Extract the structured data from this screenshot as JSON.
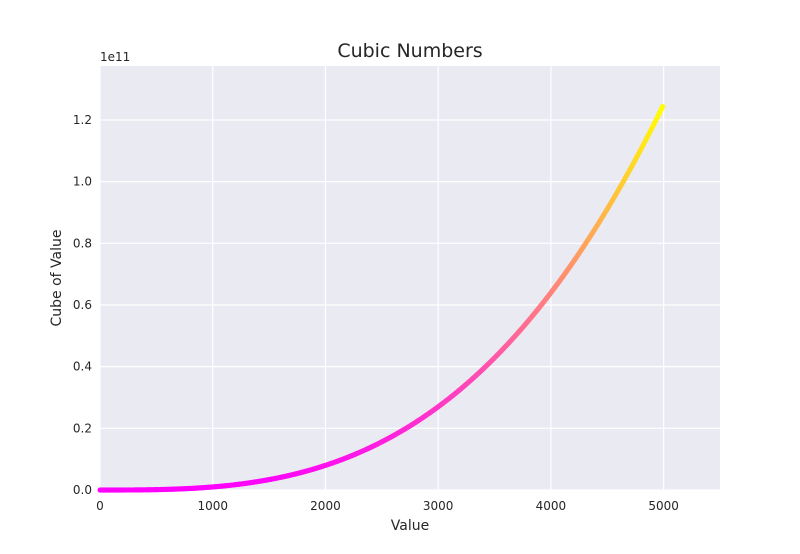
{
  "chart_data": {
    "type": "scatter",
    "title": "Cubic Numbers",
    "xlabel": "Value",
    "ylabel": "Cube of Value",
    "x_range": [
      1,
      5000
    ],
    "y_function": "y = x^3",
    "xlim": [
      0,
      5500
    ],
    "ylim": [
      0,
      137500000000.0
    ],
    "xticks": [
      0,
      1000,
      2000,
      3000,
      4000,
      5000
    ],
    "xtick_labels": [
      "0",
      "1000",
      "2000",
      "3000",
      "4000",
      "5000"
    ],
    "yticks": [
      0,
      20000000000.0,
      40000000000.0,
      60000000000.0,
      80000000000.0,
      100000000000.0,
      120000000000.0
    ],
    "ytick_labels": [
      "0.0",
      "0.2",
      "0.4",
      "0.6",
      "0.8",
      "1.0",
      "1.2"
    ],
    "y_offset_label": "1e11",
    "colormap": "spring",
    "colormap_start": "#ff00ff",
    "colormap_end": "#ffff00",
    "background": "#eaeaf2",
    "grid": true,
    "grid_color": "#ffffff"
  }
}
